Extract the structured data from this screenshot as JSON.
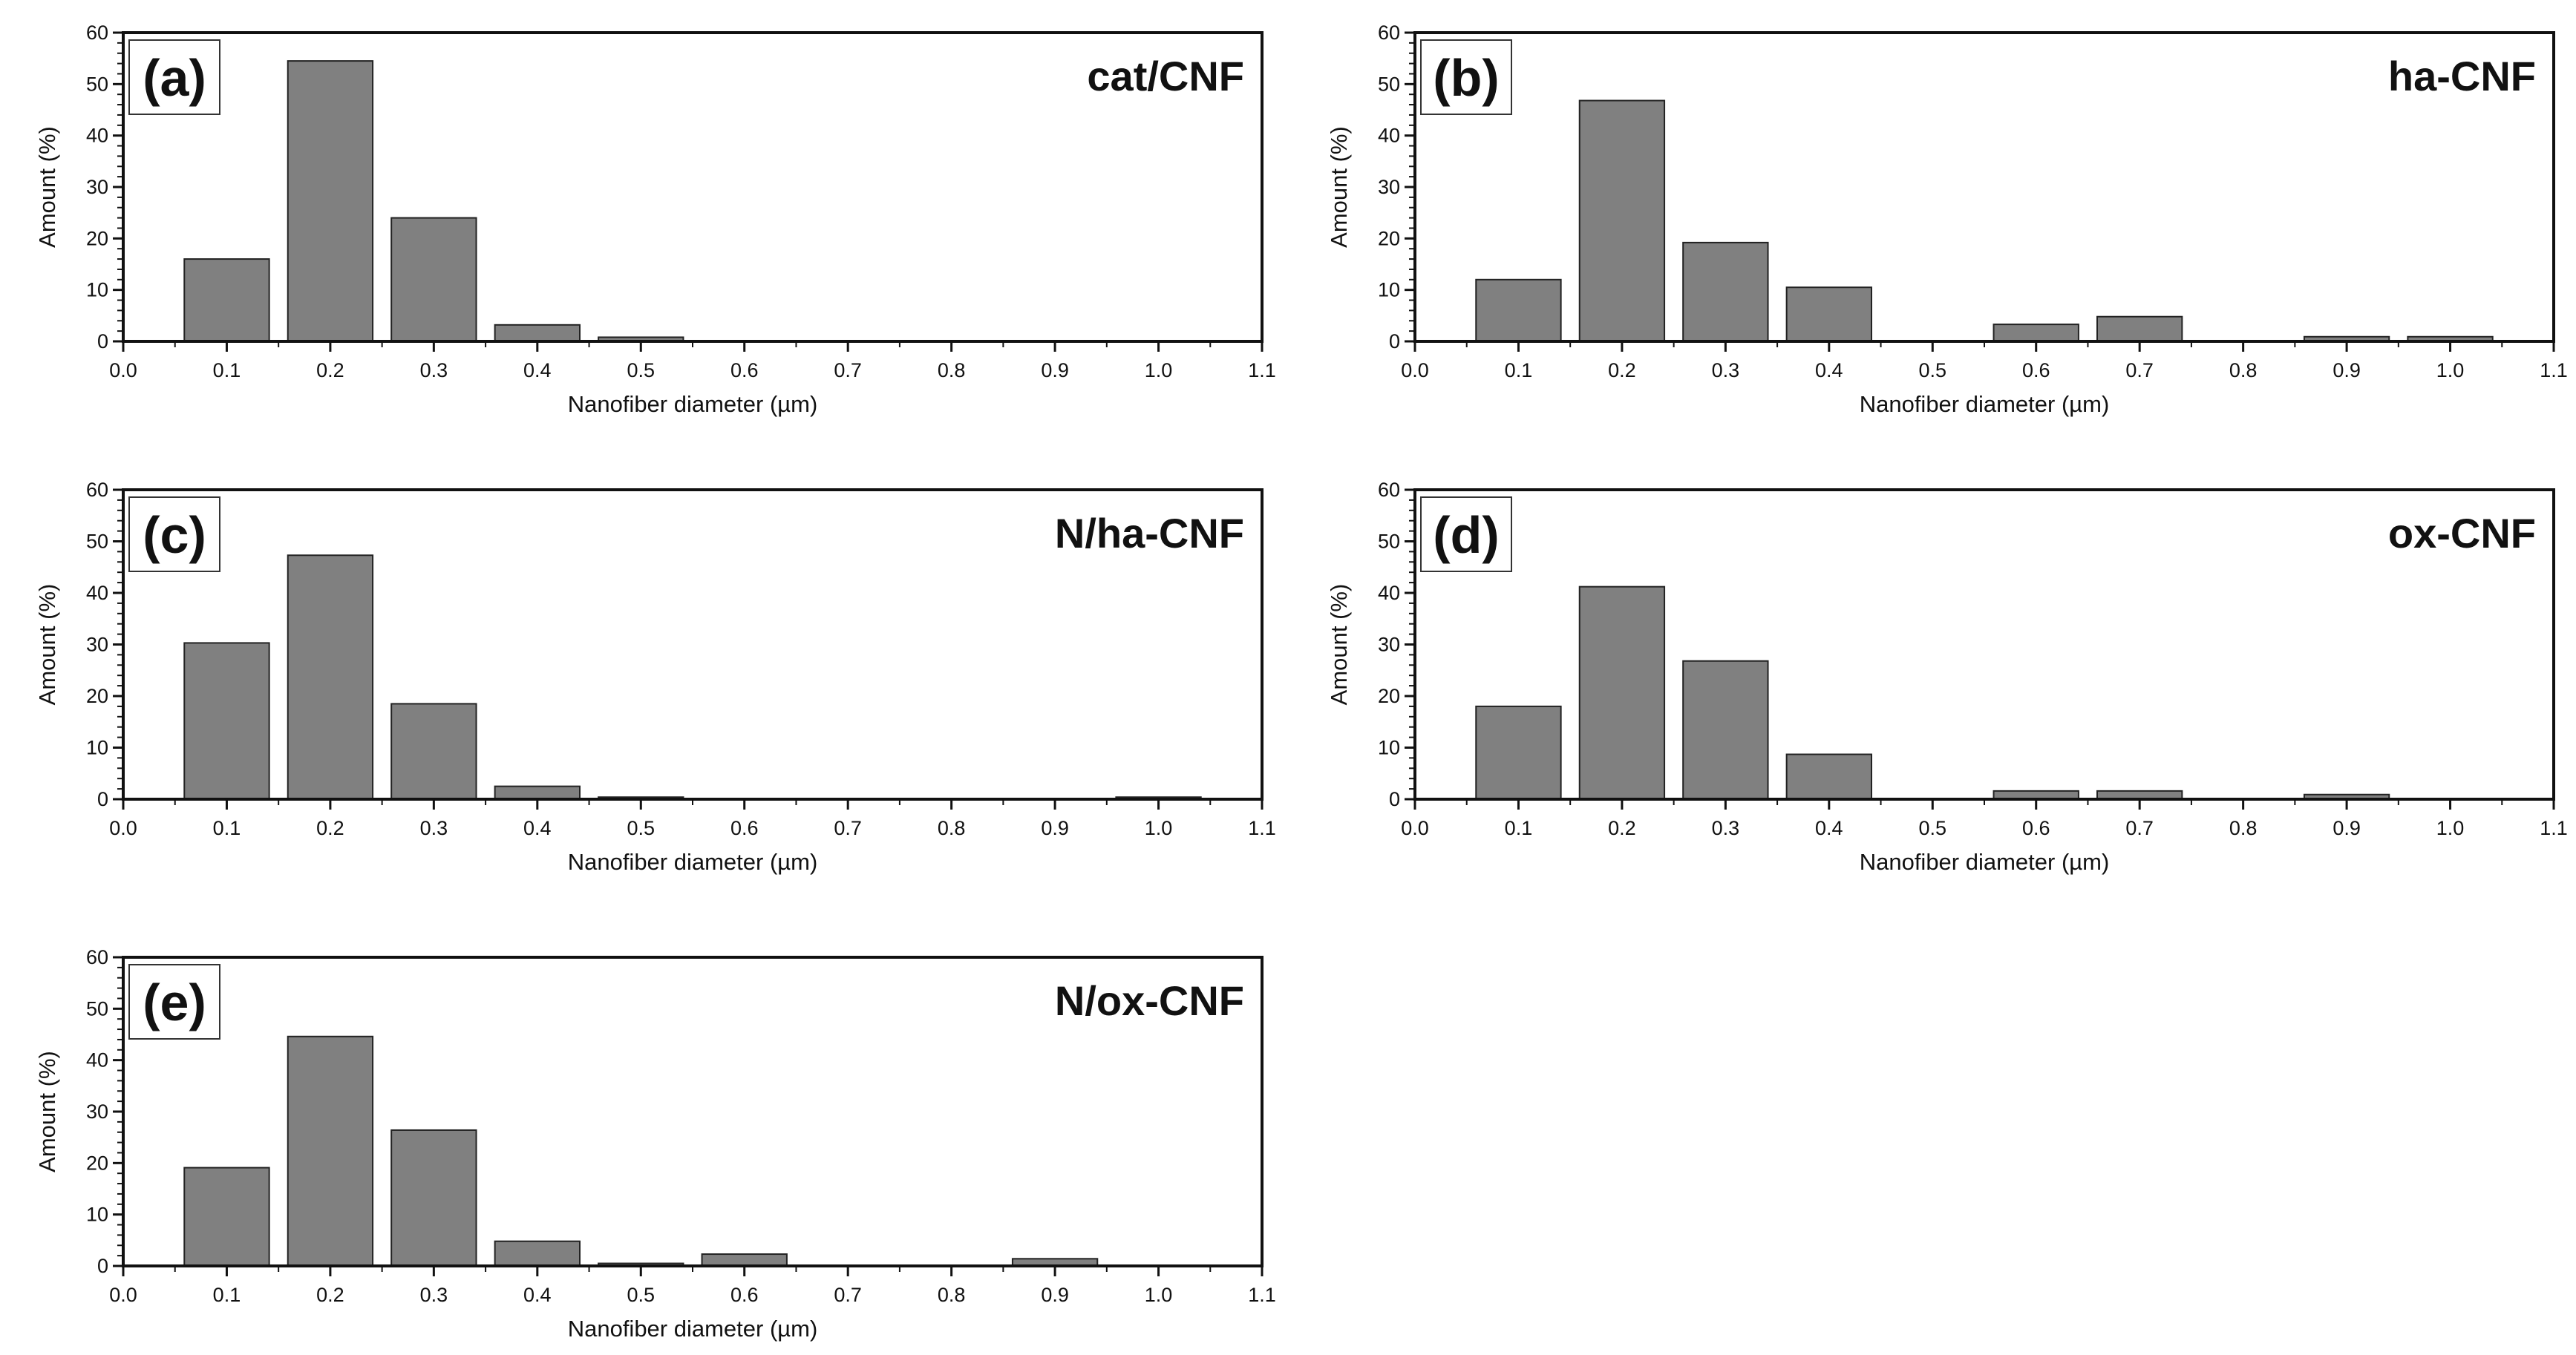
{
  "chart_data": [
    {
      "type": "bar",
      "panel": "(a)",
      "title": "cat/CNF",
      "xlabel": "Nanofiber diameter (µm)",
      "ylabel": "Amount (%)",
      "xlim": [
        0.0,
        1.1
      ],
      "ylim": [
        0,
        60
      ],
      "xticks": [
        "0.0",
        "0.1",
        "0.2",
        "0.3",
        "0.4",
        "0.5",
        "0.6",
        "0.7",
        "0.8",
        "0.9",
        "1.0",
        "1.1"
      ],
      "yticks": [
        "0",
        "10",
        "20",
        "30",
        "40",
        "50",
        "60"
      ],
      "x": [
        0.1,
        0.2,
        0.3,
        0.4,
        0.5
      ],
      "values": [
        16,
        54.5,
        24,
        3.2,
        0.8
      ]
    },
    {
      "type": "bar",
      "panel": "(b)",
      "title": "ha-CNF",
      "xlabel": "Nanofiber diameter (µm)",
      "ylabel": "Amount (%)",
      "xlim": [
        0.0,
        1.1
      ],
      "ylim": [
        0,
        60
      ],
      "xticks": [
        "0.0",
        "0.1",
        "0.2",
        "0.3",
        "0.4",
        "0.5",
        "0.6",
        "0.7",
        "0.8",
        "0.9",
        "1.0",
        "1.1"
      ],
      "yticks": [
        "0",
        "10",
        "20",
        "30",
        "40",
        "50",
        "60"
      ],
      "x": [
        0.1,
        0.2,
        0.3,
        0.4,
        0.6,
        0.7,
        0.9,
        1.0
      ],
      "values": [
        12,
        46.8,
        19.2,
        10.5,
        3.3,
        4.8,
        0.9,
        0.9
      ]
    },
    {
      "type": "bar",
      "panel": "(c)",
      "title": "N/ha-CNF",
      "xlabel": "Nanofiber diameter (µm)",
      "ylabel": "Amount (%)",
      "xlim": [
        0.0,
        1.1
      ],
      "ylim": [
        0,
        60
      ],
      "xticks": [
        "0.0",
        "0.1",
        "0.2",
        "0.3",
        "0.4",
        "0.5",
        "0.6",
        "0.7",
        "0.8",
        "0.9",
        "1.0",
        "1.1"
      ],
      "yticks": [
        "0",
        "10",
        "20",
        "30",
        "40",
        "50",
        "60"
      ],
      "x": [
        0.1,
        0.2,
        0.3,
        0.4,
        0.5,
        1.0
      ],
      "values": [
        30.3,
        47.3,
        18.5,
        2.5,
        0.4,
        0.4
      ]
    },
    {
      "type": "bar",
      "panel": "(d)",
      "title": "ox-CNF",
      "xlabel": "Nanofiber diameter (µm)",
      "ylabel": "Amount (%)",
      "xlim": [
        0.0,
        1.1
      ],
      "ylim": [
        0,
        60
      ],
      "xticks": [
        "0.0",
        "0.1",
        "0.2",
        "0.3",
        "0.4",
        "0.5",
        "0.6",
        "0.7",
        "0.8",
        "0.9",
        "1.0",
        "1.1"
      ],
      "yticks": [
        "0",
        "10",
        "20",
        "30",
        "40",
        "50",
        "60"
      ],
      "x": [
        0.1,
        0.2,
        0.3,
        0.4,
        0.6,
        0.7,
        0.9
      ],
      "values": [
        18,
        41.2,
        26.8,
        8.7,
        1.6,
        1.6,
        0.9
      ]
    },
    {
      "type": "bar",
      "panel": "(e)",
      "title": "N/ox-CNF",
      "xlabel": "Nanofiber diameter (µm)",
      "ylabel": "Amount (%)",
      "xlim": [
        0.0,
        1.1
      ],
      "ylim": [
        0,
        60
      ],
      "xticks": [
        "0.0",
        "0.1",
        "0.2",
        "0.3",
        "0.4",
        "0.5",
        "0.6",
        "0.7",
        "0.8",
        "0.9",
        "1.0",
        "1.1"
      ],
      "yticks": [
        "0",
        "10",
        "20",
        "30",
        "40",
        "50",
        "60"
      ],
      "x": [
        0.1,
        0.2,
        0.3,
        0.4,
        0.5,
        0.6,
        0.9
      ],
      "values": [
        19.1,
        44.6,
        26.4,
        4.8,
        0.5,
        2.3,
        1.4
      ]
    }
  ],
  "colors": {
    "bar_fill": "#808080",
    "bar_stroke": "#222222",
    "axis": "#111111"
  }
}
